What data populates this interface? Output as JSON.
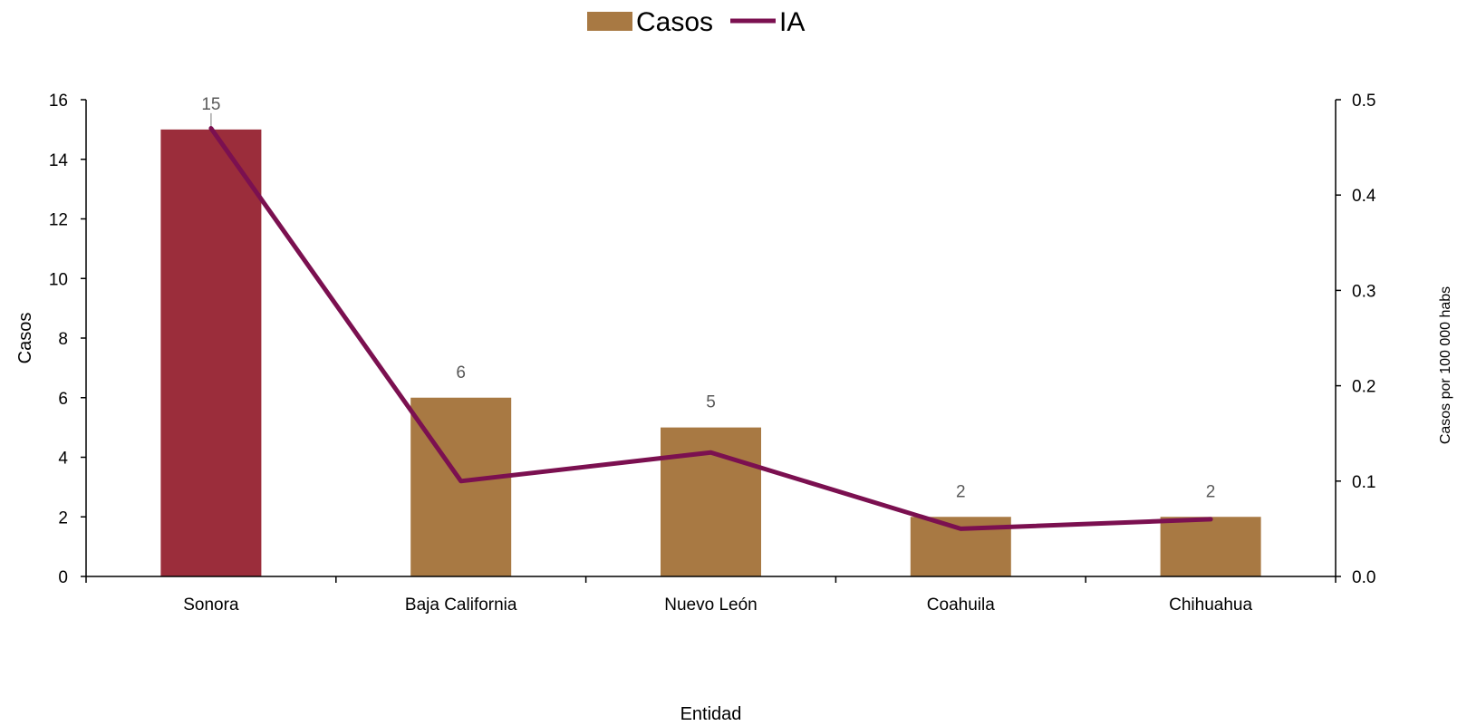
{
  "chart_data": {
    "type": "bar",
    "categories": [
      "Sonora",
      "Baja California",
      "Nuevo León",
      "Coahuila",
      "Chihuahua"
    ],
    "series": [
      {
        "name": "Casos",
        "type": "bar",
        "axis": "left",
        "values": [
          15,
          6,
          5,
          2,
          2
        ],
        "colors": [
          "#9B2D3B",
          "#A87943",
          "#A87943",
          "#A87943",
          "#A87943"
        ],
        "data_labels": [
          "15",
          "6",
          "5",
          "2",
          "2"
        ]
      },
      {
        "name": "IA",
        "type": "line",
        "axis": "right",
        "values": [
          0.47,
          0.1,
          0.13,
          0.05,
          0.06
        ],
        "color": "#7B1050"
      }
    ],
    "xlabel": "Entidad",
    "ylabel": "Casos",
    "y2label": "Casos por 100 000 habs",
    "ylim": [
      0,
      16
    ],
    "y2lim": [
      0,
      0.5
    ],
    "yticks": [
      "0",
      "2",
      "4",
      "6",
      "8",
      "10",
      "12",
      "14",
      "16"
    ],
    "y2ticks": [
      "0.0",
      "0.1",
      "0.2",
      "0.3",
      "0.4",
      "0.5"
    ],
    "legend": {
      "position": "top-center",
      "entries": [
        "Casos",
        "IA"
      ]
    },
    "grid": false
  }
}
